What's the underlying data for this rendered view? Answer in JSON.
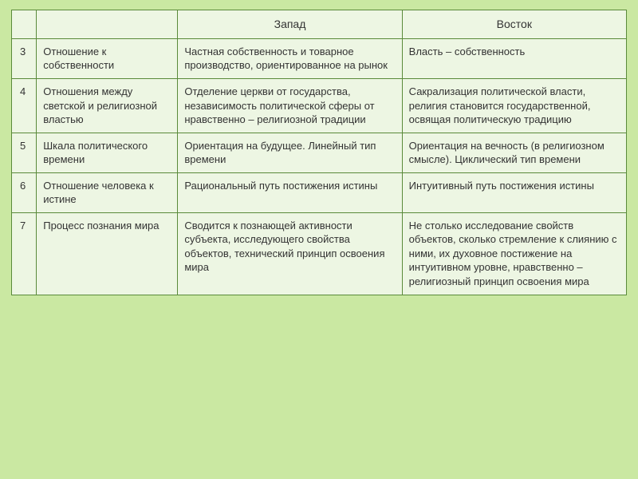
{
  "table": {
    "headers": {
      "num": "",
      "topic": "",
      "west": "Запад",
      "east": "Восток"
    },
    "rows": [
      {
        "num": "3",
        "topic": "Отношение к собственности",
        "west": "Частная собственность и товарное производство, ориентированное на рынок",
        "east": "Власть – собственность"
      },
      {
        "num": "4",
        "topic": "Отношения между светской и религиозной властью",
        "west": "Отделение церкви от государства, независимость политической сферы от нравственно – религиозной традиции",
        "east": "Сакрализация политической власти, религия становится государственной, освящая политическую традицию"
      },
      {
        "num": "5",
        "topic": "Шкала политического времени",
        "west": "Ориентация на будущее. Линейный тип времени",
        "east": "Ориентация на вечность (в религиозном смысле). Циклический тип времени"
      },
      {
        "num": "6",
        "topic": "Отношение человека к истине",
        "west": "Рациональный путь постижения истины",
        "east": "Интуитивный путь постижения истины"
      },
      {
        "num": "7",
        "topic": "Процесс познания мира",
        "west": "Сводится к познающей активности субъекта, исследующего свойства объектов, технический принцип освоения мира",
        "east": "Не столько исследование свойств объектов, сколько стремление к слиянию с ними, их духовное постижение на интуитивном уровне, нравственно – религиозный принцип освоения мира"
      }
    ],
    "colors": {
      "page_bg": "#cae8a2",
      "cell_bg": "#edf6e3",
      "border": "#5a8a3a",
      "text": "#333333"
    }
  }
}
